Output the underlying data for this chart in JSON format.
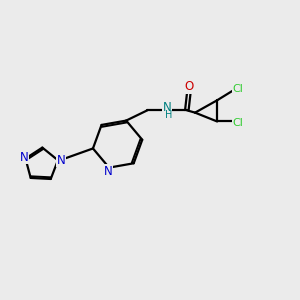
{
  "background_color": "#ebebeb",
  "bond_color": "#000000",
  "nitrogen_color": "#0000cc",
  "oxygen_color": "#cc0000",
  "chlorine_color": "#33cc33",
  "nh_color": "#008080",
  "line_width": 1.6,
  "fig_width": 3.0,
  "fig_height": 3.0,
  "dpi": 100,
  "xlim": [
    0,
    10
  ],
  "ylim": [
    0,
    10
  ]
}
